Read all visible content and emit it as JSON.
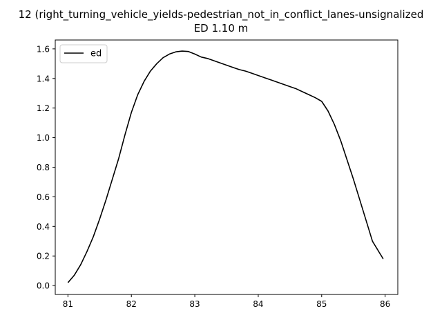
{
  "chart_data": {
    "type": "line",
    "title_line1": "12 (right_turning_vehicle_yields-pedestrian_not_in_conflict_lanes-unsignalized",
    "title_line2": "ED 1.10 m",
    "xlabel": "",
    "ylabel": "",
    "xlim": [
      80.8,
      86.2
    ],
    "ylim": [
      -0.06,
      1.66
    ],
    "xticks": [
      81,
      82,
      83,
      84,
      85,
      86
    ],
    "yticks": [
      0.0,
      0.2,
      0.4,
      0.6,
      0.8,
      1.0,
      1.2,
      1.4,
      1.6
    ],
    "ytick_labels": [
      "0.0",
      "0.2",
      "0.4",
      "0.6",
      "0.8",
      "1.0",
      "1.2",
      "1.4",
      "1.6"
    ],
    "grid": false,
    "legend_position": "top-left",
    "series": [
      {
        "name": "ed",
        "color": "#000000",
        "x": [
          81.0,
          81.1,
          81.2,
          81.3,
          81.4,
          81.5,
          81.6,
          81.7,
          81.8,
          81.9,
          82.0,
          82.1,
          82.2,
          82.3,
          82.4,
          82.5,
          82.6,
          82.7,
          82.8,
          82.9,
          83.0,
          83.1,
          83.2,
          83.3,
          83.4,
          83.5,
          83.6,
          83.7,
          83.8,
          83.9,
          84.0,
          84.1,
          84.2,
          84.3,
          84.4,
          84.5,
          84.6,
          84.7,
          84.8,
          84.9,
          85.0,
          85.1,
          85.2,
          85.3,
          85.4,
          85.5,
          85.6,
          85.7,
          85.8,
          85.97
        ],
        "y": [
          0.02,
          0.07,
          0.14,
          0.23,
          0.33,
          0.45,
          0.58,
          0.72,
          0.86,
          1.02,
          1.17,
          1.29,
          1.38,
          1.45,
          1.5,
          1.54,
          1.565,
          1.58,
          1.585,
          1.582,
          1.565,
          1.545,
          1.535,
          1.52,
          1.505,
          1.49,
          1.475,
          1.46,
          1.45,
          1.435,
          1.42,
          1.405,
          1.39,
          1.375,
          1.36,
          1.345,
          1.33,
          1.31,
          1.29,
          1.27,
          1.245,
          1.18,
          1.09,
          0.98,
          0.85,
          0.72,
          0.58,
          0.44,
          0.3,
          0.18
        ]
      }
    ]
  }
}
